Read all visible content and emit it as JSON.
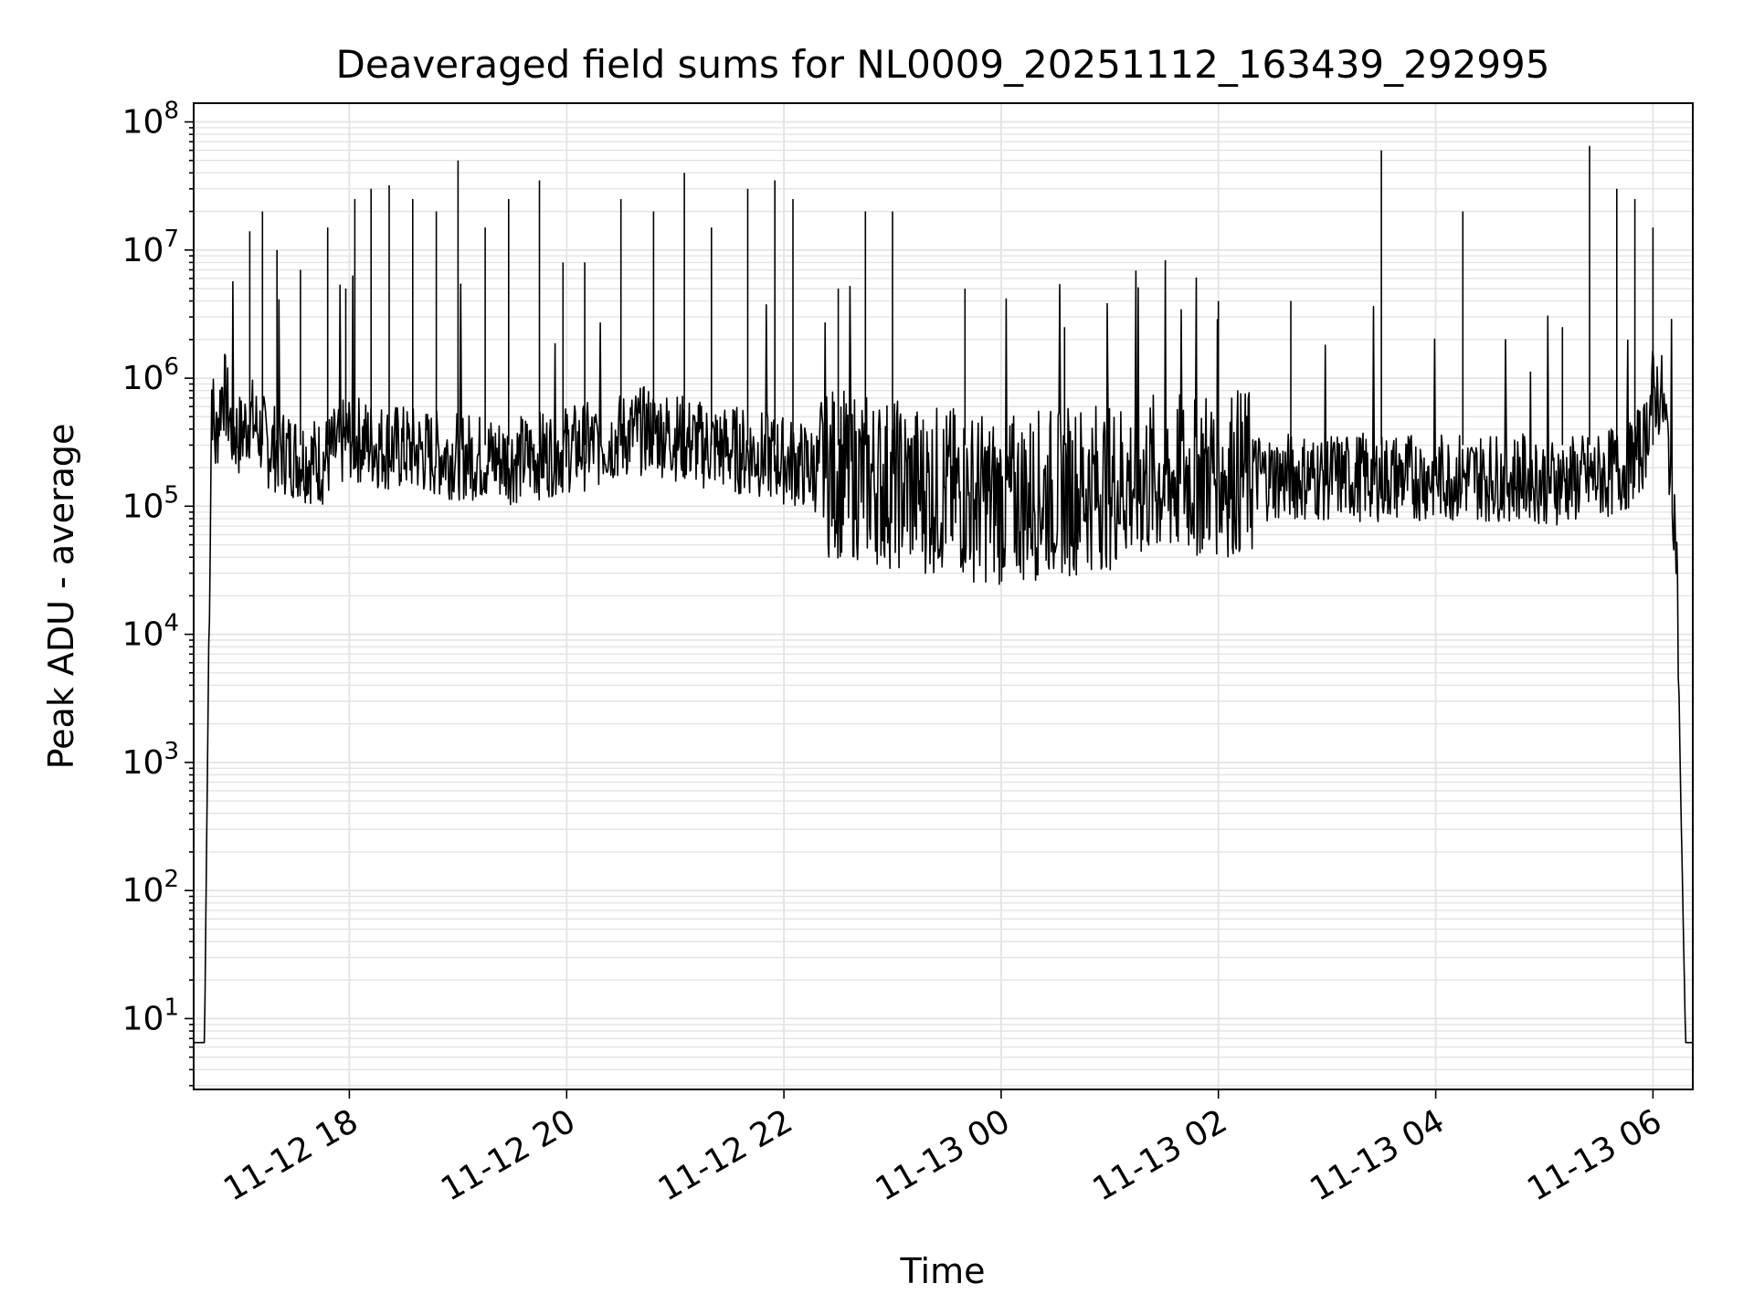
{
  "chart_data": {
    "type": "line",
    "title": "Deaveraged field sums for NL0009_20251112_163439_292995",
    "xlabel": "Time",
    "ylabel": "Peak ADU - average",
    "y_scale": "log",
    "ylim": [
      2.8,
      140000000
    ],
    "xlim": [
      "2025-11-12 16:34",
      "2025-11-13 06:22"
    ],
    "grid": true,
    "line_color": "#000000",
    "grid_color": "#e3e3e3",
    "x_ticks": [
      {
        "t": "2025-11-12 18:00",
        "label": "11-12 18"
      },
      {
        "t": "2025-11-12 20:00",
        "label": "11-12 20"
      },
      {
        "t": "2025-11-12 22:00",
        "label": "11-12 22"
      },
      {
        "t": "2025-11-13 00:00",
        "label": "11-13 00"
      },
      {
        "t": "2025-11-13 02:00",
        "label": "11-13 02"
      },
      {
        "t": "2025-11-13 04:00",
        "label": "11-13 04"
      },
      {
        "t": "2025-11-13 06:00",
        "label": "11-13 06"
      }
    ],
    "y_ticks": [
      {
        "value": 10,
        "exp": "1"
      },
      {
        "value": 100,
        "exp": "2"
      },
      {
        "value": 1000,
        "exp": "3"
      },
      {
        "value": 10000,
        "exp": "4"
      },
      {
        "value": 100000,
        "exp": "5"
      },
      {
        "value": 1000000,
        "exp": "6"
      },
      {
        "value": 10000000,
        "exp": "7"
      },
      {
        "value": 100000000,
        "exp": "8"
      }
    ],
    "series": [
      {
        "x": [
          "2025-11-12 16:34",
          "2025-11-12 16:36",
          "2025-11-12 16:40",
          "2025-11-12 16:42",
          "2025-11-12 16:44",
          "2025-11-12 16:46",
          "2025-11-12 16:50",
          "2025-11-12 16:55",
          "2025-11-12 17:00",
          "2025-11-12 17:05",
          "2025-11-12 17:15",
          "2025-11-12 17:30",
          "2025-11-12 17:45",
          "2025-11-12 18:00",
          "2025-11-12 18:15",
          "2025-11-12 18:30",
          "2025-11-12 18:45",
          "2025-11-12 19:00",
          "2025-11-12 19:15",
          "2025-11-12 19:30",
          "2025-11-12 19:45",
          "2025-11-12 20:00",
          "2025-11-12 20:15",
          "2025-11-12 20:30",
          "2025-11-12 20:45",
          "2025-11-12 21:00",
          "2025-11-12 21:15",
          "2025-11-12 21:30",
          "2025-11-12 21:45",
          "2025-11-12 22:00",
          "2025-11-12 22:15",
          "2025-11-12 22:30",
          "2025-11-12 22:45",
          "2025-11-12 23:00",
          "2025-11-12 23:15",
          "2025-11-12 23:30",
          "2025-11-12 23:45",
          "2025-11-13 00:00",
          "2025-11-13 00:15",
          "2025-11-13 00:30",
          "2025-11-13 00:45",
          "2025-11-13 01:00",
          "2025-11-13 01:15",
          "2025-11-13 01:30",
          "2025-11-13 01:45",
          "2025-11-13 02:00",
          "2025-11-13 02:15",
          "2025-11-13 02:30",
          "2025-11-13 02:45",
          "2025-11-13 03:00",
          "2025-11-13 03:15",
          "2025-11-13 03:30",
          "2025-11-13 03:45",
          "2025-11-13 04:00",
          "2025-11-13 04:15",
          "2025-11-13 04:30",
          "2025-11-13 04:45",
          "2025-11-13 05:00",
          "2025-11-13 05:15",
          "2025-11-13 05:30",
          "2025-11-13 05:45",
          "2025-11-13 05:55",
          "2025-11-13 06:00",
          "2025-11-13 06:05",
          "2025-11-13 06:10",
          "2025-11-13 06:13",
          "2025-11-13 06:15",
          "2025-11-13 06:18",
          "2025-11-13 06:22"
        ],
        "y": [
          6.5,
          6.5,
          6.5,
          3000,
          800000,
          300000,
          900000,
          400000,
          350000,
          500000,
          300000,
          250000,
          220000,
          350000,
          300000,
          280000,
          260000,
          250000,
          240000,
          230000,
          250000,
          280000,
          300000,
          350000,
          400000,
          350000,
          300000,
          280000,
          260000,
          230000,
          200000,
          180000,
          170000,
          150000,
          140000,
          130000,
          120000,
          110000,
          120000,
          130000,
          140000,
          150000,
          160000,
          170000,
          180000,
          190000,
          180000,
          170000,
          170000,
          170000,
          170000,
          170000,
          170000,
          170000,
          170000,
          170000,
          170000,
          160000,
          160000,
          170000,
          200000,
          300000,
          800000,
          700000,
          200000,
          50000,
          1000,
          6.5,
          6.5
        ],
        "spikes": [
          {
            "t": "2025-11-12 17:05",
            "v": 14000000
          },
          {
            "t": "2025-11-12 17:12",
            "v": 20000000
          },
          {
            "t": "2025-11-12 17:20",
            "v": 10000000
          },
          {
            "t": "2025-11-12 17:33",
            "v": 7000000
          },
          {
            "t": "2025-11-12 17:48",
            "v": 15000000
          },
          {
            "t": "2025-11-12 17:58",
            "v": 5000000
          },
          {
            "t": "2025-11-12 18:03",
            "v": 25000000
          },
          {
            "t": "2025-11-12 18:12",
            "v": 30000000
          },
          {
            "t": "2025-11-12 18:22",
            "v": 32000000
          },
          {
            "t": "2025-11-12 18:35",
            "v": 25000000
          },
          {
            "t": "2025-11-12 18:48",
            "v": 20000000
          },
          {
            "t": "2025-11-12 19:00",
            "v": 50000000
          },
          {
            "t": "2025-11-12 19:15",
            "v": 15000000
          },
          {
            "t": "2025-11-12 19:28",
            "v": 25000000
          },
          {
            "t": "2025-11-12 19:45",
            "v": 35000000
          },
          {
            "t": "2025-11-12 19:58",
            "v": 8000000
          },
          {
            "t": "2025-11-12 20:10",
            "v": 8000000
          },
          {
            "t": "2025-11-12 20:30",
            "v": 25000000
          },
          {
            "t": "2025-11-12 20:48",
            "v": 20000000
          },
          {
            "t": "2025-11-12 21:05",
            "v": 40000000
          },
          {
            "t": "2025-11-12 21:20",
            "v": 15000000
          },
          {
            "t": "2025-11-12 21:40",
            "v": 30000000
          },
          {
            "t": "2025-11-12 21:55",
            "v": 35000000
          },
          {
            "t": "2025-11-12 22:05",
            "v": 25000000
          },
          {
            "t": "2025-11-12 22:30",
            "v": 5000000
          },
          {
            "t": "2025-11-12 22:45",
            "v": 20000000
          },
          {
            "t": "2025-11-12 23:00",
            "v": 20000000
          },
          {
            "t": "2025-11-12 23:40",
            "v": 5000000
          },
          {
            "t": "2025-11-13 00:35",
            "v": 2500000
          },
          {
            "t": "2025-11-13 02:00",
            "v": 4000000
          },
          {
            "t": "2025-11-13 02:40",
            "v": 4000000
          },
          {
            "t": "2025-11-13 03:30",
            "v": 60000000
          },
          {
            "t": "2025-11-13 04:15",
            "v": 20000000
          },
          {
            "t": "2025-11-13 05:10",
            "v": 2500000
          },
          {
            "t": "2025-11-13 05:25",
            "v": 65000000
          },
          {
            "t": "2025-11-13 05:40",
            "v": 30000000
          },
          {
            "t": "2025-11-13 05:50",
            "v": 25000000
          },
          {
            "t": "2025-11-13 06:00",
            "v": 15000000
          }
        ]
      }
    ]
  }
}
